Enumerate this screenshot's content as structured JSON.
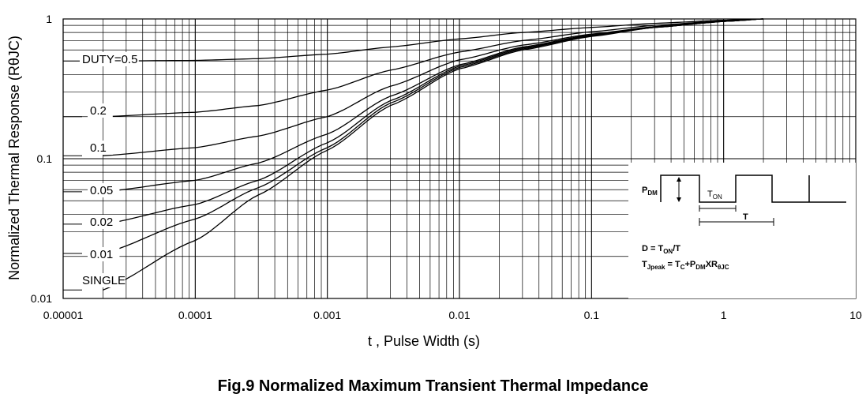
{
  "caption": "Fig.9 Normalized Maximum Transient Thermal Impedance",
  "chart_data": {
    "type": "line",
    "title": "Fig.9 Normalized Maximum Transient Thermal Impedance",
    "xlabel": "t , Pulse Width (s)",
    "ylabel": "Normalized Thermal Response (RθJC)",
    "xscale": "log",
    "yscale": "log",
    "xlim": [
      1e-05,
      10
    ],
    "ylim": [
      0.01,
      1
    ],
    "x_ticks": [
      "0.00001",
      "0.0001",
      "0.001",
      "0.01",
      "0.1",
      "1",
      "10"
    ],
    "y_ticks": [
      "1",
      "0.1",
      "0.01"
    ],
    "grid": true,
    "series": [
      {
        "name": "DUTY=0.5",
        "x": [
          2e-05,
          0.0001,
          0.0003,
          0.001,
          0.003,
          0.01,
          0.03,
          0.1,
          0.3,
          1,
          2
        ],
        "y": [
          0.5,
          0.505,
          0.52,
          0.56,
          0.63,
          0.72,
          0.8,
          0.87,
          0.93,
          0.98,
          1.0
        ]
      },
      {
        "name": "0.2",
        "x": [
          2e-05,
          0.0001,
          0.0003,
          0.001,
          0.003,
          0.01,
          0.03,
          0.1,
          0.3,
          1,
          2
        ],
        "y": [
          0.2,
          0.215,
          0.24,
          0.31,
          0.43,
          0.58,
          0.7,
          0.81,
          0.9,
          0.97,
          1.0
        ]
      },
      {
        "name": "0.1",
        "x": [
          2e-05,
          0.0001,
          0.0003,
          0.001,
          0.003,
          0.01,
          0.03,
          0.1,
          0.3,
          1,
          2
        ],
        "y": [
          0.105,
          0.12,
          0.145,
          0.2,
          0.33,
          0.51,
          0.65,
          0.78,
          0.88,
          0.97,
          1.0
        ]
      },
      {
        "name": "0.05",
        "x": [
          2e-05,
          0.0001,
          0.0003,
          0.001,
          0.003,
          0.01,
          0.03,
          0.1,
          0.3,
          1,
          2
        ],
        "y": [
          0.058,
          0.07,
          0.093,
          0.15,
          0.28,
          0.47,
          0.63,
          0.77,
          0.88,
          0.96,
          1.0
        ]
      },
      {
        "name": "0.02",
        "x": [
          2e-05,
          0.0001,
          0.0003,
          0.001,
          0.003,
          0.01,
          0.03,
          0.1,
          0.3,
          1,
          2
        ],
        "y": [
          0.034,
          0.047,
          0.07,
          0.13,
          0.26,
          0.46,
          0.62,
          0.76,
          0.87,
          0.96,
          1.0
        ]
      },
      {
        "name": "0.01",
        "x": [
          2e-05,
          0.0001,
          0.0003,
          0.001,
          0.003,
          0.01,
          0.03,
          0.1,
          0.3,
          1,
          2
        ],
        "y": [
          0.021,
          0.037,
          0.062,
          0.12,
          0.25,
          0.45,
          0.61,
          0.76,
          0.87,
          0.96,
          1.0
        ]
      },
      {
        "name": "SINGLE",
        "x": [
          2e-05,
          0.0001,
          0.0003,
          0.001,
          0.003,
          0.01,
          0.03,
          0.1,
          0.3,
          1,
          2
        ],
        "y": [
          0.0115,
          0.026,
          0.055,
          0.115,
          0.24,
          0.44,
          0.6,
          0.75,
          0.87,
          0.96,
          1.0
        ]
      }
    ],
    "curve_labels": [
      "DUTY=0.5",
      "0.2",
      "0.1",
      "0.05",
      "0.02",
      "0.01",
      "SINGLE"
    ],
    "inset": {
      "pdm_label": "P",
      "pdm_sub": "DM",
      "ton_label": "T",
      "ton_sub": "ON",
      "t_label": "T",
      "formula1_pre": "D = T",
      "formula1_sub": "ON",
      "formula1_post": "/T",
      "formula2_a": "T",
      "formula2_a_sub": "Jpeak",
      "formula2_b": " = T",
      "formula2_b_sub": "C",
      "formula2_c": "+P",
      "formula2_c_sub": "DM",
      "formula2_d": "XR",
      "formula2_d_sub": "θJC"
    }
  }
}
